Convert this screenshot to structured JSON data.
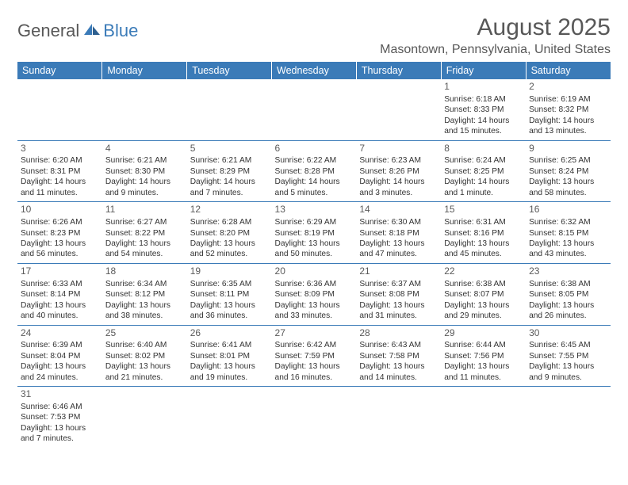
{
  "brand": {
    "general": "General",
    "blue": "Blue"
  },
  "title": "August 2025",
  "location": "Masontown, Pennsylvania, United States",
  "colors": {
    "header_bg": "#3b7bb8",
    "header_text": "#ffffff",
    "text": "#333333",
    "title_text": "#585858",
    "row_border": "#3b7bb8"
  },
  "day_headers": [
    "Sunday",
    "Monday",
    "Tuesday",
    "Wednesday",
    "Thursday",
    "Friday",
    "Saturday"
  ],
  "weeks": [
    [
      null,
      null,
      null,
      null,
      null,
      {
        "n": "1",
        "sr": "Sunrise: 6:18 AM",
        "ss": "Sunset: 8:33 PM",
        "dl": "Daylight: 14 hours and 15 minutes."
      },
      {
        "n": "2",
        "sr": "Sunrise: 6:19 AM",
        "ss": "Sunset: 8:32 PM",
        "dl": "Daylight: 14 hours and 13 minutes."
      }
    ],
    [
      {
        "n": "3",
        "sr": "Sunrise: 6:20 AM",
        "ss": "Sunset: 8:31 PM",
        "dl": "Daylight: 14 hours and 11 minutes."
      },
      {
        "n": "4",
        "sr": "Sunrise: 6:21 AM",
        "ss": "Sunset: 8:30 PM",
        "dl": "Daylight: 14 hours and 9 minutes."
      },
      {
        "n": "5",
        "sr": "Sunrise: 6:21 AM",
        "ss": "Sunset: 8:29 PM",
        "dl": "Daylight: 14 hours and 7 minutes."
      },
      {
        "n": "6",
        "sr": "Sunrise: 6:22 AM",
        "ss": "Sunset: 8:28 PM",
        "dl": "Daylight: 14 hours and 5 minutes."
      },
      {
        "n": "7",
        "sr": "Sunrise: 6:23 AM",
        "ss": "Sunset: 8:26 PM",
        "dl": "Daylight: 14 hours and 3 minutes."
      },
      {
        "n": "8",
        "sr": "Sunrise: 6:24 AM",
        "ss": "Sunset: 8:25 PM",
        "dl": "Daylight: 14 hours and 1 minute."
      },
      {
        "n": "9",
        "sr": "Sunrise: 6:25 AM",
        "ss": "Sunset: 8:24 PM",
        "dl": "Daylight: 13 hours and 58 minutes."
      }
    ],
    [
      {
        "n": "10",
        "sr": "Sunrise: 6:26 AM",
        "ss": "Sunset: 8:23 PM",
        "dl": "Daylight: 13 hours and 56 minutes."
      },
      {
        "n": "11",
        "sr": "Sunrise: 6:27 AM",
        "ss": "Sunset: 8:22 PM",
        "dl": "Daylight: 13 hours and 54 minutes."
      },
      {
        "n": "12",
        "sr": "Sunrise: 6:28 AM",
        "ss": "Sunset: 8:20 PM",
        "dl": "Daylight: 13 hours and 52 minutes."
      },
      {
        "n": "13",
        "sr": "Sunrise: 6:29 AM",
        "ss": "Sunset: 8:19 PM",
        "dl": "Daylight: 13 hours and 50 minutes."
      },
      {
        "n": "14",
        "sr": "Sunrise: 6:30 AM",
        "ss": "Sunset: 8:18 PM",
        "dl": "Daylight: 13 hours and 47 minutes."
      },
      {
        "n": "15",
        "sr": "Sunrise: 6:31 AM",
        "ss": "Sunset: 8:16 PM",
        "dl": "Daylight: 13 hours and 45 minutes."
      },
      {
        "n": "16",
        "sr": "Sunrise: 6:32 AM",
        "ss": "Sunset: 8:15 PM",
        "dl": "Daylight: 13 hours and 43 minutes."
      }
    ],
    [
      {
        "n": "17",
        "sr": "Sunrise: 6:33 AM",
        "ss": "Sunset: 8:14 PM",
        "dl": "Daylight: 13 hours and 40 minutes."
      },
      {
        "n": "18",
        "sr": "Sunrise: 6:34 AM",
        "ss": "Sunset: 8:12 PM",
        "dl": "Daylight: 13 hours and 38 minutes."
      },
      {
        "n": "19",
        "sr": "Sunrise: 6:35 AM",
        "ss": "Sunset: 8:11 PM",
        "dl": "Daylight: 13 hours and 36 minutes."
      },
      {
        "n": "20",
        "sr": "Sunrise: 6:36 AM",
        "ss": "Sunset: 8:09 PM",
        "dl": "Daylight: 13 hours and 33 minutes."
      },
      {
        "n": "21",
        "sr": "Sunrise: 6:37 AM",
        "ss": "Sunset: 8:08 PM",
        "dl": "Daylight: 13 hours and 31 minutes."
      },
      {
        "n": "22",
        "sr": "Sunrise: 6:38 AM",
        "ss": "Sunset: 8:07 PM",
        "dl": "Daylight: 13 hours and 29 minutes."
      },
      {
        "n": "23",
        "sr": "Sunrise: 6:38 AM",
        "ss": "Sunset: 8:05 PM",
        "dl": "Daylight: 13 hours and 26 minutes."
      }
    ],
    [
      {
        "n": "24",
        "sr": "Sunrise: 6:39 AM",
        "ss": "Sunset: 8:04 PM",
        "dl": "Daylight: 13 hours and 24 minutes."
      },
      {
        "n": "25",
        "sr": "Sunrise: 6:40 AM",
        "ss": "Sunset: 8:02 PM",
        "dl": "Daylight: 13 hours and 21 minutes."
      },
      {
        "n": "26",
        "sr": "Sunrise: 6:41 AM",
        "ss": "Sunset: 8:01 PM",
        "dl": "Daylight: 13 hours and 19 minutes."
      },
      {
        "n": "27",
        "sr": "Sunrise: 6:42 AM",
        "ss": "Sunset: 7:59 PM",
        "dl": "Daylight: 13 hours and 16 minutes."
      },
      {
        "n": "28",
        "sr": "Sunrise: 6:43 AM",
        "ss": "Sunset: 7:58 PM",
        "dl": "Daylight: 13 hours and 14 minutes."
      },
      {
        "n": "29",
        "sr": "Sunrise: 6:44 AM",
        "ss": "Sunset: 7:56 PM",
        "dl": "Daylight: 13 hours and 11 minutes."
      },
      {
        "n": "30",
        "sr": "Sunrise: 6:45 AM",
        "ss": "Sunset: 7:55 PM",
        "dl": "Daylight: 13 hours and 9 minutes."
      }
    ],
    [
      {
        "n": "31",
        "sr": "Sunrise: 6:46 AM",
        "ss": "Sunset: 7:53 PM",
        "dl": "Daylight: 13 hours and 7 minutes."
      },
      null,
      null,
      null,
      null,
      null,
      null
    ]
  ]
}
